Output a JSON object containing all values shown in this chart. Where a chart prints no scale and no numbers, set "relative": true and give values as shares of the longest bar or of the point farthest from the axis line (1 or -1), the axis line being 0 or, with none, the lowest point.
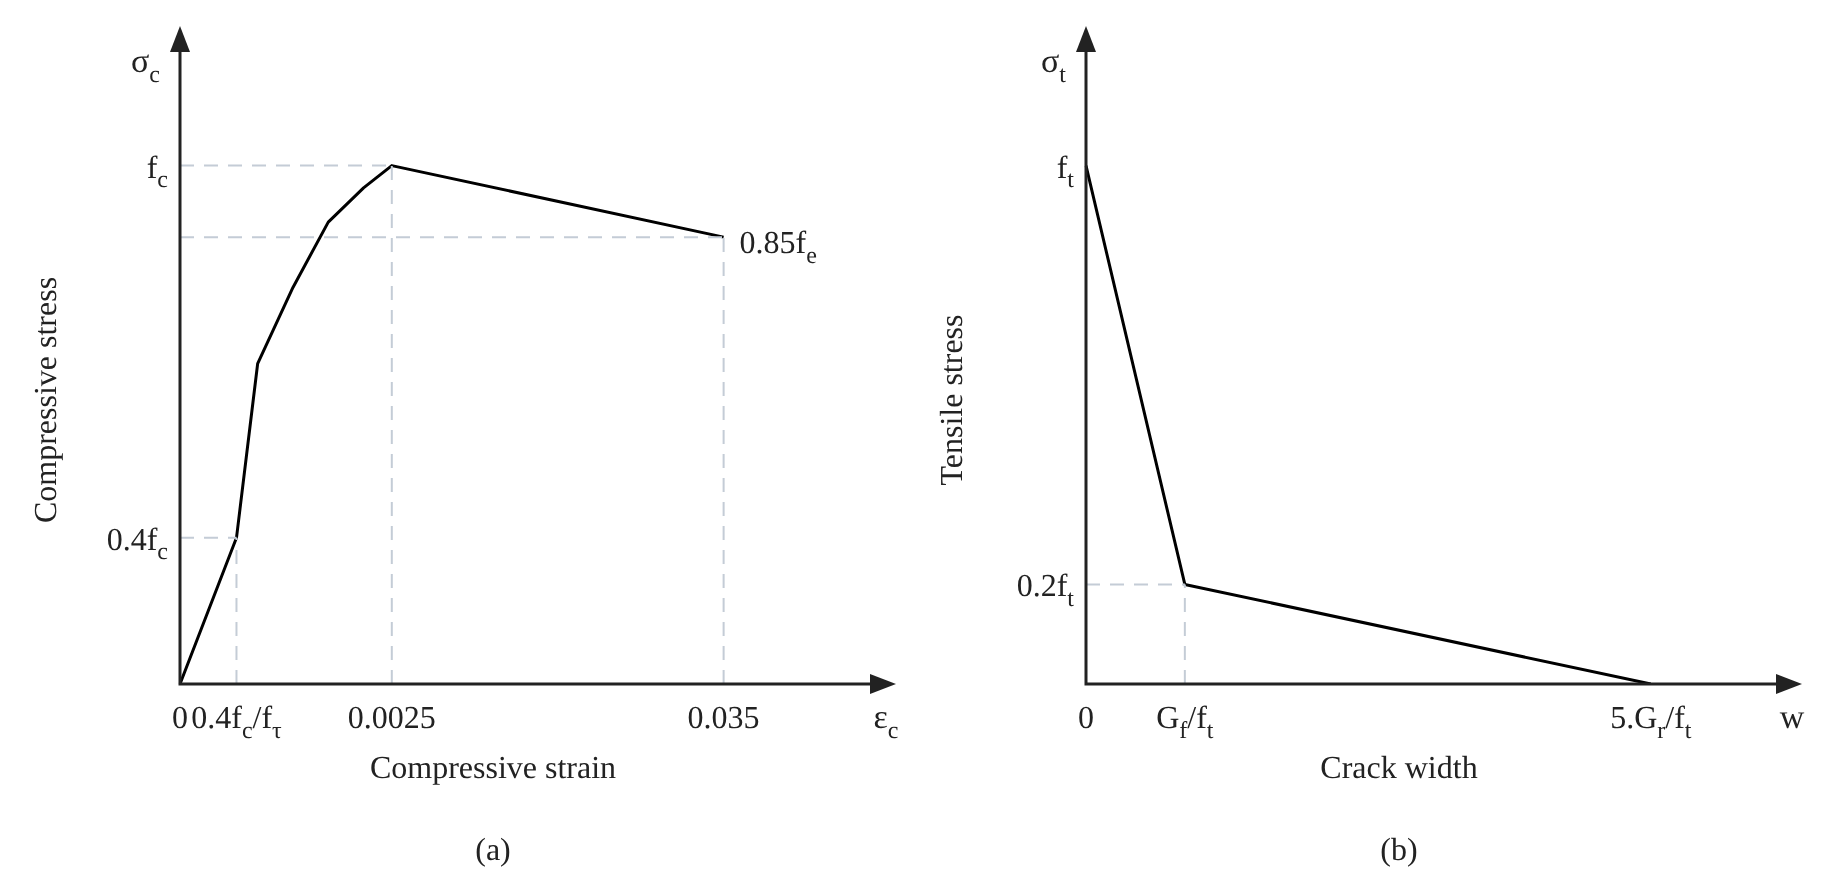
{
  "chart_data": [
    {
      "type": "line",
      "title": "(a)",
      "xlabel": "Compressive strain",
      "ylabel": "Compressive stress",
      "marker": "none",
      "line_style": "solid",
      "legend": false,
      "relative": true,
      "categories": [
        "0",
        null,
        null,
        null,
        null,
        null,
        null,
        null,
        "0.4f$_{c}$/f$_{τ}$",
        null,
        null,
        null,
        null,
        null,
        null,
        null,
        null,
        null,
        null,
        null,
        null,
        null,
        null,
        null,
        null,
        null,
        null,
        null,
        null,
        null,
        "0.0025",
        null,
        null,
        null,
        null,
        null,
        null,
        null,
        null,
        null,
        null,
        null,
        null,
        null,
        null,
        null,
        null,
        null,
        null,
        null,
        null,
        null,
        null,
        null,
        null,
        null,
        null,
        null,
        null,
        null,
        null,
        null,
        null,
        null,
        null,
        null,
        null,
        null,
        null,
        null,
        null,
        null,
        null,
        null,
        null,
        null,
        null,
        "0.035",
        null,
        null,
        null,
        null,
        null,
        null,
        null,
        null,
        null,
        null,
        null,
        null,
        null,
        null,
        null,
        null,
        null,
        null,
        null,
        null,
        null,
        null,
        null
      ],
      "annotations": [
        "σ$_{c}$",
        "ε$_{c}$",
        {
          "text": "0.85f$_{e}$",
          "x": "0.035",
          "y": 0.862
        }
      ],
      "series": [
        {
          "color": "#000000",
          "values": [
            0,
            null,
            null,
            null,
            null,
            null,
            null,
            null,
            0.282,
            null,
            null,
            0.618,
            null,
            null,
            null,
            null,
            0.765,
            null,
            null,
            null,
            null,
            0.891,
            null,
            null,
            null,
            null,
            0.957,
            null,
            null,
            null,
            1,
            null,
            null,
            null,
            null,
            null,
            null,
            null,
            null,
            null,
            null,
            null,
            null,
            null,
            null,
            null,
            null,
            null,
            null,
            null,
            null,
            null,
            null,
            null,
            null,
            null,
            null,
            null,
            null,
            null,
            null,
            null,
            null,
            null,
            null,
            null,
            null,
            null,
            null,
            null,
            null,
            null,
            null,
            null,
            null,
            null,
            null,
            0.862,
            null,
            null,
            null,
            null,
            null,
            null,
            null,
            null,
            null,
            null,
            null,
            null,
            null,
            null,
            null,
            null,
            null,
            null,
            null,
            null,
            null,
            null,
            null
          ]
        }
      ],
      "ref_lines": [
        {
          "axis": "x",
          "value": "0.4f$_{c}$/f$_{τ}$",
          "color": "#c4ccd6",
          "line_style": "dashed"
        },
        {
          "axis": "x",
          "value": "0.0025",
          "color": "#c4ccd6",
          "line_style": "dashed"
        },
        {
          "axis": "x",
          "value": "0.035",
          "color": "#c4ccd6",
          "line_style": "dashed"
        },
        {
          "axis": "y",
          "value": 0.282,
          "label": "0.4f$_{c}$",
          "color": "#c4ccd6",
          "line_style": "dashed"
        },
        {
          "axis": "y",
          "value": 1,
          "label": "f$_{c}$",
          "color": "#c4ccd6",
          "line_style": "dashed"
        },
        {
          "axis": "y",
          "value": 0.862,
          "color": "#c4ccd6",
          "line_style": "dashed"
        }
      ]
    },
    {
      "type": "line",
      "title": "(b)",
      "xlabel": "Crack width",
      "ylabel": "Tensile stress",
      "marker": "none",
      "line_style": "solid",
      "legend": false,
      "relative": true,
      "categories": [
        "0",
        null,
        null,
        null,
        null,
        null,
        null,
        null,
        null,
        null,
        null,
        null,
        null,
        null,
        "G$_{f}$/f$_{t}$",
        null,
        null,
        null,
        null,
        null,
        null,
        null,
        null,
        null,
        null,
        null,
        null,
        null,
        null,
        null,
        null,
        null,
        null,
        null,
        null,
        null,
        null,
        null,
        null,
        null,
        null,
        null,
        null,
        null,
        null,
        null,
        null,
        null,
        null,
        null,
        null,
        null,
        null,
        null,
        null,
        null,
        null,
        null,
        null,
        null,
        null,
        null,
        null,
        null,
        null,
        null,
        null,
        null,
        null,
        null,
        null,
        null,
        null,
        null,
        null,
        null,
        null,
        null,
        null,
        null,
        "5.G$_{r}$/f$_{t}$",
        null,
        null,
        null,
        null,
        null,
        null,
        null,
        null,
        null,
        null,
        null,
        null,
        null,
        null,
        null,
        null,
        null,
        null,
        null,
        null
      ],
      "annotations": [
        "σ$_{t}$",
        "w",
        {
          "text": "f$_{t}$",
          "x": "0",
          "y": 1
        }
      ],
      "series": [
        {
          "color": "#000000",
          "values": [
            1,
            null,
            null,
            null,
            null,
            null,
            null,
            null,
            null,
            null,
            null,
            null,
            null,
            null,
            0.192,
            null,
            null,
            null,
            null,
            null,
            null,
            null,
            null,
            null,
            null,
            null,
            null,
            null,
            null,
            null,
            null,
            null,
            null,
            null,
            null,
            null,
            null,
            null,
            null,
            null,
            null,
            null,
            null,
            null,
            null,
            null,
            null,
            null,
            null,
            null,
            null,
            null,
            null,
            null,
            null,
            null,
            null,
            null,
            null,
            null,
            null,
            null,
            null,
            null,
            null,
            null,
            null,
            null,
            null,
            null,
            null,
            null,
            null,
            null,
            null,
            null,
            null,
            null,
            null,
            null,
            0,
            null,
            null,
            null,
            null,
            null,
            null,
            null,
            null,
            null,
            null,
            null,
            null,
            null,
            null,
            null,
            null,
            null,
            null,
            null,
            null
          ]
        }
      ],
      "ref_lines": [
        {
          "axis": "x",
          "value": "G$_{f}$/f$_{t}$",
          "color": "#c4ccd6",
          "line_style": "dashed"
        },
        {
          "axis": "y",
          "value": 0.192,
          "label": "0.2f$_{t}$",
          "color": "#c4ccd6",
          "line_style": "dashed"
        }
      ]
    }
  ]
}
